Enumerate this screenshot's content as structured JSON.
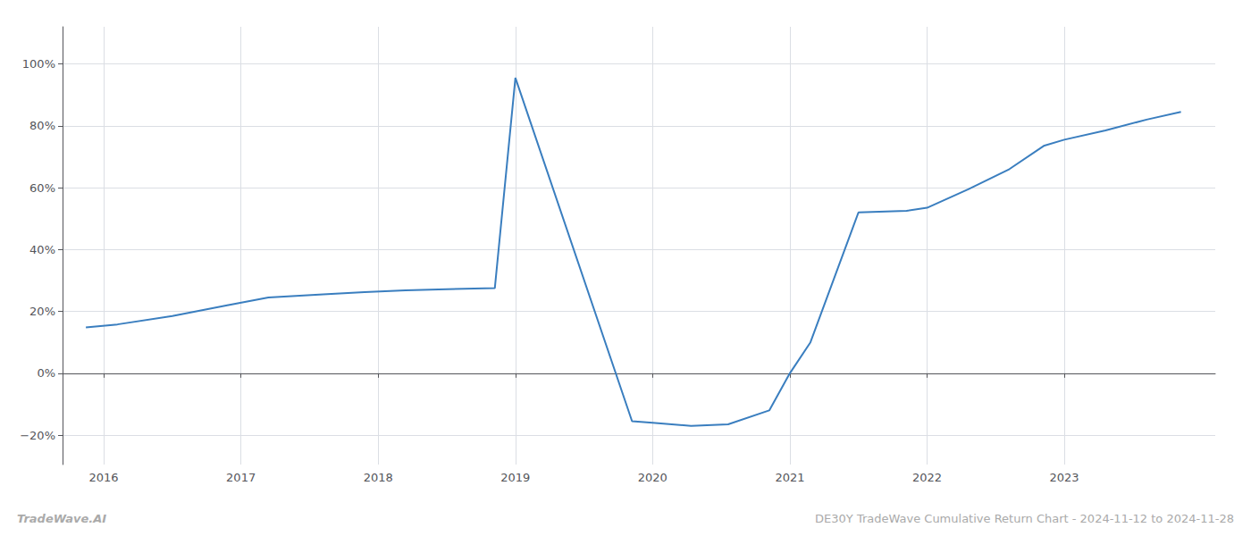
{
  "chart_data": {
    "type": "line",
    "title": "DE30Y TradeWave Cumulative Return Chart - 2024-11-12 to 2024-11-28",
    "annotations": [
      "TradeWave.AI"
    ],
    "x": [
      2015.87,
      2016.1,
      2016.5,
      2016.9,
      2017.2,
      2017.6,
      2017.9,
      2018.2,
      2018.5,
      2018.85,
      2019.0,
      2019.85,
      2020.0,
      2020.28,
      2020.55,
      2020.85,
      2021.0,
      2021.15,
      2021.5,
      2021.85,
      2022.0,
      2022.3,
      2022.6,
      2022.85,
      2023.0,
      2023.3,
      2023.6,
      2023.85
    ],
    "values": [
      0.148,
      0.158,
      0.185,
      0.22,
      0.245,
      0.255,
      0.262,
      0.268,
      0.272,
      0.275,
      0.955,
      -0.155,
      -0.16,
      -0.17,
      -0.165,
      -0.12,
      0.0,
      0.1,
      0.52,
      0.525,
      0.535,
      0.595,
      0.66,
      0.735,
      0.755,
      0.785,
      0.82,
      0.845
    ],
    "color": "#3a7ebf",
    "xlim": [
      2015.7,
      2024.1
    ],
    "xticks": [
      2016,
      2017,
      2018,
      2019,
      2020,
      2021,
      2022,
      2023
    ],
    "ylim": [
      -0.295,
      1.12
    ],
    "yticks": [
      {
        "value": -0.2,
        "label": "−20%"
      },
      {
        "value": 0.0,
        "label": "0%"
      },
      {
        "value": 0.2,
        "label": "20%"
      },
      {
        "value": 0.4,
        "label": "40%"
      },
      {
        "value": 0.6,
        "label": "60%"
      },
      {
        "value": 0.8,
        "label": "80%"
      },
      {
        "value": 1.0,
        "label": "100%"
      }
    ],
    "grid": true
  }
}
